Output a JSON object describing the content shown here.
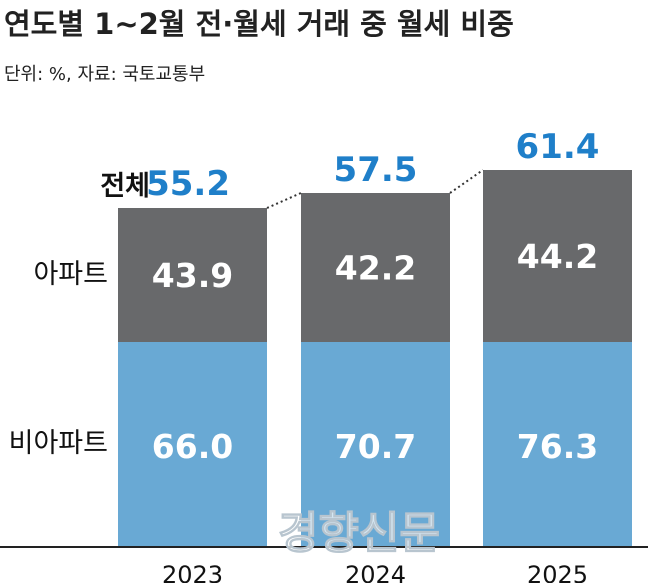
{
  "colors": {
    "apartment": "#68696b",
    "non_apartment": "#69a9d4",
    "total_value": "#1f7fc9",
    "text": "#111111"
  },
  "watermark": "경향신문",
  "chart_data": {
    "type": "bar",
    "stacked": true,
    "title": "연도별 1~2월 전·월세 거래 중 월세 비중",
    "subtitle": "단위: %, 자료: 국토교통부",
    "categories": [
      "2023",
      "2024",
      "2025"
    ],
    "series": [
      {
        "name": "비아파트",
        "values": [
          66.0,
          70.7,
          76.3
        ]
      },
      {
        "name": "아파트",
        "values": [
          43.9,
          42.2,
          44.2
        ]
      }
    ],
    "totals": {
      "label": "전체",
      "values": [
        55.2,
        57.5,
        61.4
      ]
    }
  }
}
